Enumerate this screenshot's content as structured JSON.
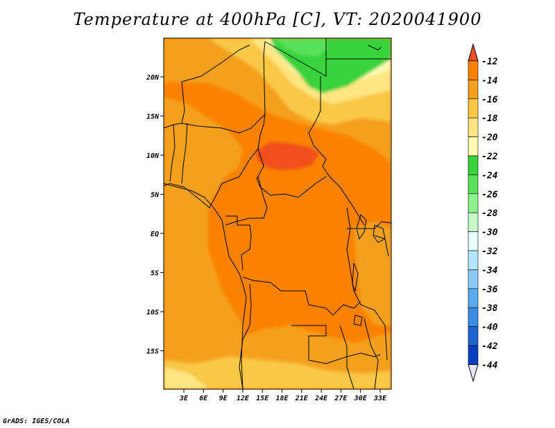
{
  "title": "Temperature at 400hPa [C], VT: 2020041900",
  "credit": "GrADS: IGES/COLA",
  "map": {
    "lat_labels": [
      "20N",
      "15N",
      "10N",
      "5N",
      "EQ",
      "5S",
      "10S",
      "15S"
    ],
    "lon_labels": [
      "3E",
      "6E",
      "9E",
      "12E",
      "15E",
      "18E",
      "21E",
      "24E",
      "27E",
      "30E",
      "33E"
    ]
  },
  "legend": {
    "labels": [
      "-12",
      "-14",
      "-16",
      "-18",
      "-20",
      "-22",
      "-24",
      "-26",
      "-28",
      "-30",
      "-32",
      "-34",
      "-36",
      "-38",
      "-40",
      "-42",
      "-44"
    ],
    "colors": [
      "#f0501e",
      "#fa8200",
      "#f5a01e",
      "#fac846",
      "#ffe682",
      "#fffab4",
      "#37d23c",
      "#5ae15a",
      "#8cf08c",
      "#c8fac8",
      "#e6fff8",
      "#b4e6ff",
      "#8cc8f5",
      "#5aaaf0",
      "#3c8ce6",
      "#1e64d2",
      "#0a3cbe",
      "#0a148c"
    ]
  }
}
